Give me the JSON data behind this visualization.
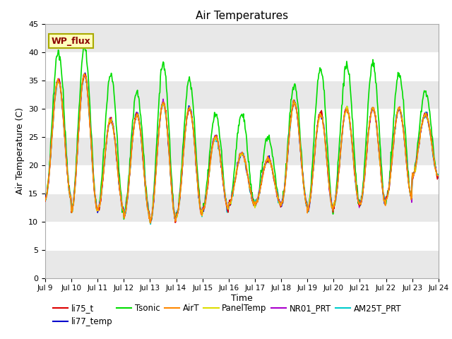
{
  "title": "Air Temperatures",
  "xlabel": "Time",
  "ylabel": "Air Temperature (C)",
  "ylim": [
    0,
    45
  ],
  "yticks": [
    0,
    5,
    10,
    15,
    20,
    25,
    30,
    35,
    40,
    45
  ],
  "xlim_days": [
    9,
    24
  ],
  "xtick_days": [
    9,
    10,
    11,
    12,
    13,
    14,
    15,
    16,
    17,
    18,
    19,
    20,
    21,
    22,
    23,
    24
  ],
  "series": {
    "li75_t": {
      "color": "#dd0000",
      "lw": 1.0,
      "zorder": 4
    },
    "li77_temp": {
      "color": "#0000cc",
      "lw": 1.0,
      "zorder": 4
    },
    "Tsonic": {
      "color": "#00dd00",
      "lw": 1.2,
      "zorder": 3
    },
    "AirT": {
      "color": "#ff8800",
      "lw": 1.0,
      "zorder": 5
    },
    "PanelTemp": {
      "color": "#dddd00",
      "lw": 1.0,
      "zorder": 5
    },
    "NR01_PRT": {
      "color": "#aa00cc",
      "lw": 1.0,
      "zorder": 4
    },
    "AM25T_PRT": {
      "color": "#00cccc",
      "lw": 1.2,
      "zorder": 3
    }
  },
  "annotation_text": "WP_flux",
  "plot_bg": "#d8d8d8",
  "band_light": "#e8e8e8",
  "band_dark": "#d0d0d0",
  "grid_color": "#ffffff",
  "fig_bg": "#ffffff",
  "day_max": {
    "9": 35,
    "10": 36,
    "11": 28,
    "12": 29,
    "13": 31,
    "14": 30,
    "15": 25,
    "16": 22,
    "17": 21,
    "18": 31,
    "19": 29,
    "20": 30,
    "21": 30,
    "22": 30,
    "23": 29
  },
  "day_min": {
    "9": 14,
    "10": 12,
    "11": 12,
    "12": 11,
    "13": 10,
    "14": 11,
    "15": 12,
    "16": 13,
    "17": 13,
    "18": 13,
    "19": 12,
    "20": 13,
    "21": 13,
    "22": 14,
    "23": 18
  },
  "tsonic_extra": {
    "9": 5,
    "10": 5,
    "11": 8,
    "12": 4,
    "13": 7,
    "14": 5,
    "15": 4,
    "16": 7,
    "17": 4,
    "18": 3,
    "19": 8,
    "20": 8,
    "21": 8,
    "22": 6,
    "23": 4
  }
}
